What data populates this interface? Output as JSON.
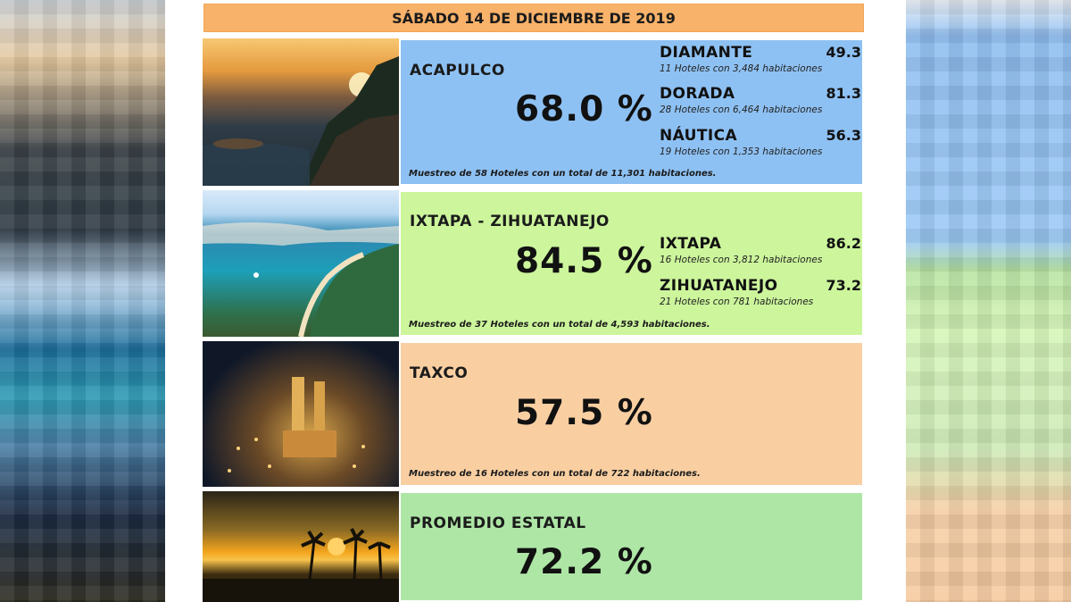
{
  "header": {
    "date": "SÁBADO 14 DE DICIEMBRE DE 2019"
  },
  "acapulco": {
    "name": "ACAPULCO",
    "percent": "68.0 %",
    "note": "Muestreo de 58 Hoteles con un total de 11,301 habitaciones.",
    "zones": [
      {
        "name": "DIAMANTE",
        "value": "49.3",
        "info": "11 Hoteles con 3,484 habitaciones"
      },
      {
        "name": "DORADA",
        "value": "81.3",
        "info": "28 Hoteles con 6,464 habitaciones"
      },
      {
        "name": "NÁUTICA",
        "value": "56.3",
        "info": "19 Hoteles con 1,353 habitaciones"
      }
    ]
  },
  "ixtapa": {
    "name": "IXTAPA - ZIHUATANEJO",
    "percent": "84.5 %",
    "note": "Muestreo de 37 Hoteles con un total de 4,593 habitaciones.",
    "zones": [
      {
        "name": "IXTAPA",
        "value": "86.2",
        "info": "16 Hoteles con 3,812 habitaciones"
      },
      {
        "name": "ZIHUATANEJO",
        "value": "73.2",
        "info": "21 Hoteles con 781 habitaciones"
      }
    ]
  },
  "taxco": {
    "name": "TAXCO",
    "percent": "57.5 %",
    "note": "Muestreo de 16 Hoteles con un total de 722 habitaciones."
  },
  "promedio": {
    "name": "PROMEDIO ESTATAL",
    "percent": "72.2 %"
  },
  "colors": {
    "header": "#f8b26a",
    "acapulco": "#8ec1f3",
    "ixtapa": "#ccf59c",
    "taxco": "#f9cfa2",
    "promedio": "#aee6a6"
  }
}
